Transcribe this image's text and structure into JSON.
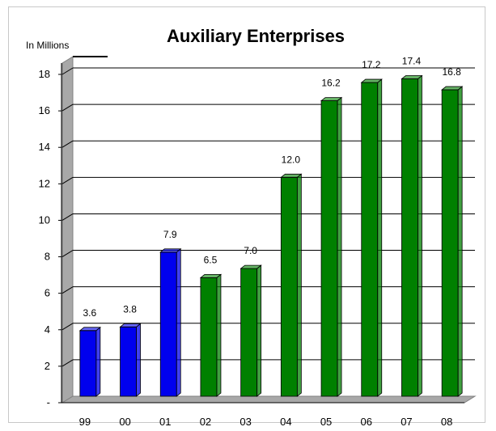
{
  "chart_data": {
    "type": "bar",
    "title": "Auxiliary Enterprises",
    "unit_label": "In Millions",
    "categories": [
      "99",
      "00",
      "01",
      "02",
      "03",
      "04",
      "05",
      "06",
      "07",
      "08"
    ],
    "values": [
      3.6,
      3.8,
      7.9,
      6.5,
      7.0,
      12.0,
      16.2,
      17.2,
      17.4,
      16.8
    ],
    "data_labels": [
      "3.6",
      "3.8",
      "7.9",
      "6.5",
      "7.0",
      "12.0",
      "16.2",
      "17.2",
      "17.4",
      "16.8"
    ],
    "bar_colors": [
      "#0000ee",
      "#0000ee",
      "#0000ee",
      "#008000",
      "#008000",
      "#008000",
      "#008000",
      "#008000",
      "#008000",
      "#008000"
    ],
    "ylim": [
      0,
      18
    ],
    "yticks": [
      0,
      2,
      4,
      6,
      8,
      10,
      12,
      14,
      16,
      18
    ],
    "ytick_labels": [
      "-",
      "2",
      "4",
      "6",
      "8",
      "10",
      "12",
      "14",
      "16",
      "18"
    ],
    "grid": true,
    "legend": "none",
    "style": "3d"
  }
}
